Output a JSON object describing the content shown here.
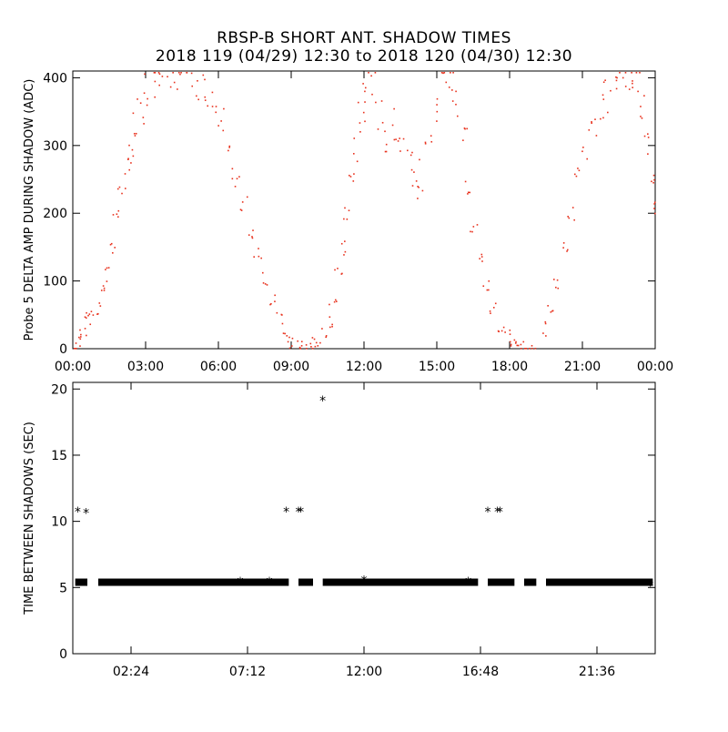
{
  "chart_data": [
    {
      "type": "scatter",
      "title": "RBSP-B SHORT ANT. SHADOW TIMES",
      "subtitle": "2018 119 (04/29) 12:30 to 2018 120 (04/30) 12:30",
      "xlabel": "",
      "ylabel": "Probe 5 DELTA AMP DURING SHADOW (ADC)",
      "xlim": [
        0,
        24
      ],
      "ylim": [
        0,
        410
      ],
      "x_ticks": [
        0,
        3,
        6,
        9,
        12,
        15,
        18,
        21,
        24
      ],
      "x_tick_labels": [
        "00:00",
        "03:00",
        "06:00",
        "09:00",
        "12:00",
        "15:00",
        "18:00",
        "21:00",
        "00:00"
      ],
      "y_ticks": [
        0,
        100,
        200,
        300,
        400
      ],
      "y_tick_labels": [
        "0",
        "100",
        "200",
        "300",
        "400"
      ],
      "marker_color": "#e8321e",
      "grid": false,
      "series": [
        {
          "points": [
            [
              0.05,
              5
            ],
            [
              0.2,
              12
            ],
            [
              0.4,
              28
            ],
            [
              0.55,
              45
            ],
            [
              0.65,
              50
            ],
            [
              1.0,
              60
            ],
            [
              1.2,
              85
            ],
            [
              1.4,
              110
            ],
            [
              1.6,
              150
            ],
            [
              1.8,
              200
            ],
            [
              2.0,
              240
            ],
            [
              2.2,
              275
            ],
            [
              2.4,
              305
            ],
            [
              2.6,
              335
            ],
            [
              2.8,
              360
            ],
            [
              3.0,
              380
            ],
            [
              3.3,
              395
            ],
            [
              3.6,
              400
            ],
            [
              4.0,
              405
            ],
            [
              4.4,
              405
            ],
            [
              4.8,
              400
            ],
            [
              5.2,
              395
            ],
            [
              5.5,
              385
            ],
            [
              5.8,
              360
            ],
            [
              6.1,
              330
            ],
            [
              6.4,
              290
            ],
            [
              6.7,
              250
            ],
            [
              7.0,
              215
            ],
            [
              7.3,
              175
            ],
            [
              7.6,
              140
            ],
            [
              7.9,
              105
            ],
            [
              8.2,
              75
            ],
            [
              8.5,
              45
            ],
            [
              8.8,
              20
            ],
            [
              9.0,
              8
            ],
            [
              9.3,
              4
            ],
            [
              9.5,
              5
            ],
            [
              9.8,
              8
            ],
            [
              10.0,
              10
            ],
            [
              10.3,
              20
            ],
            [
              10.5,
              40
            ],
            [
              10.7,
              70
            ],
            [
              10.9,
              110
            ],
            [
              11.1,
              150
            ],
            [
              11.3,
              200
            ],
            [
              11.5,
              250
            ],
            [
              11.7,
              300
            ],
            [
              11.9,
              345
            ],
            [
              12.1,
              380
            ],
            [
              12.3,
              400
            ],
            [
              12.6,
              350
            ],
            [
              12.9,
              300
            ],
            [
              13.2,
              330
            ],
            [
              13.5,
              310
            ],
            [
              13.8,
              290
            ],
            [
              14.1,
              260
            ],
            [
              14.3,
              230
            ],
            [
              14.6,
              300
            ],
            [
              14.9,
              360
            ],
            [
              15.2,
              395
            ],
            [
              15.5,
              400
            ],
            [
              15.8,
              360
            ],
            [
              16.1,
              300
            ],
            [
              16.3,
              240
            ],
            [
              16.5,
              180
            ],
            [
              16.8,
              130
            ],
            [
              17.0,
              95
            ],
            [
              17.3,
              60
            ],
            [
              17.6,
              35
            ],
            [
              17.9,
              18
            ],
            [
              18.1,
              8
            ],
            [
              18.3,
              4
            ],
            [
              18.6,
              3
            ],
            [
              18.9,
              5
            ],
            [
              19.3,
              30
            ],
            [
              19.6,
              60
            ],
            [
              19.9,
              100
            ],
            [
              20.2,
              150
            ],
            [
              20.5,
              200
            ],
            [
              20.8,
              260
            ],
            [
              21.1,
              300
            ],
            [
              21.4,
              330
            ],
            [
              21.7,
              355
            ],
            [
              22.0,
              375
            ],
            [
              22.3,
              390
            ],
            [
              22.6,
              400
            ],
            [
              22.9,
              405
            ],
            [
              23.2,
              395
            ],
            [
              23.5,
              360
            ],
            [
              23.7,
              300
            ],
            [
              23.9,
              250
            ],
            [
              24.0,
              210
            ]
          ]
        }
      ]
    },
    {
      "type": "scatter",
      "title": "",
      "xlabel": "",
      "ylabel": "TIME BETWEEN SHADOWS (SEC)",
      "xlim": [
        0,
        24
      ],
      "ylim": [
        0,
        20.5
      ],
      "x_ticks": [
        2.4,
        7.2,
        12.0,
        16.8,
        21.6
      ],
      "x_tick_labels": [
        "02:24",
        "07:12",
        "12:00",
        "16:48",
        "21:36"
      ],
      "y_ticks": [
        0,
        5,
        10,
        15,
        20
      ],
      "y_tick_labels": [
        "0",
        "5",
        "10",
        "15",
        "20"
      ],
      "marker": "*",
      "marker_color": "#000000",
      "grid": false,
      "baseline_value": 5.4,
      "baseline_segments": [
        [
          0.1,
          0.6
        ],
        [
          1.05,
          8.9
        ],
        [
          9.3,
          9.9
        ],
        [
          10.3,
          16.7
        ],
        [
          17.1,
          18.2
        ],
        [
          18.6,
          19.1
        ],
        [
          19.5,
          23.9
        ]
      ],
      "series": [
        {
          "points": [
            [
              0.2,
              10.8
            ],
            [
              0.55,
              10.7
            ],
            [
              8.8,
              10.8
            ],
            [
              9.3,
              10.8
            ],
            [
              9.4,
              10.8
            ],
            [
              10.3,
              19.2
            ],
            [
              17.1,
              10.8
            ],
            [
              17.5,
              10.8
            ],
            [
              17.6,
              10.8
            ],
            [
              12.0,
              5.6
            ],
            [
              6.9,
              5.5
            ],
            [
              8.1,
              5.5
            ],
            [
              16.3,
              5.5
            ],
            [
              23.8,
              5.2
            ]
          ]
        }
      ]
    }
  ]
}
